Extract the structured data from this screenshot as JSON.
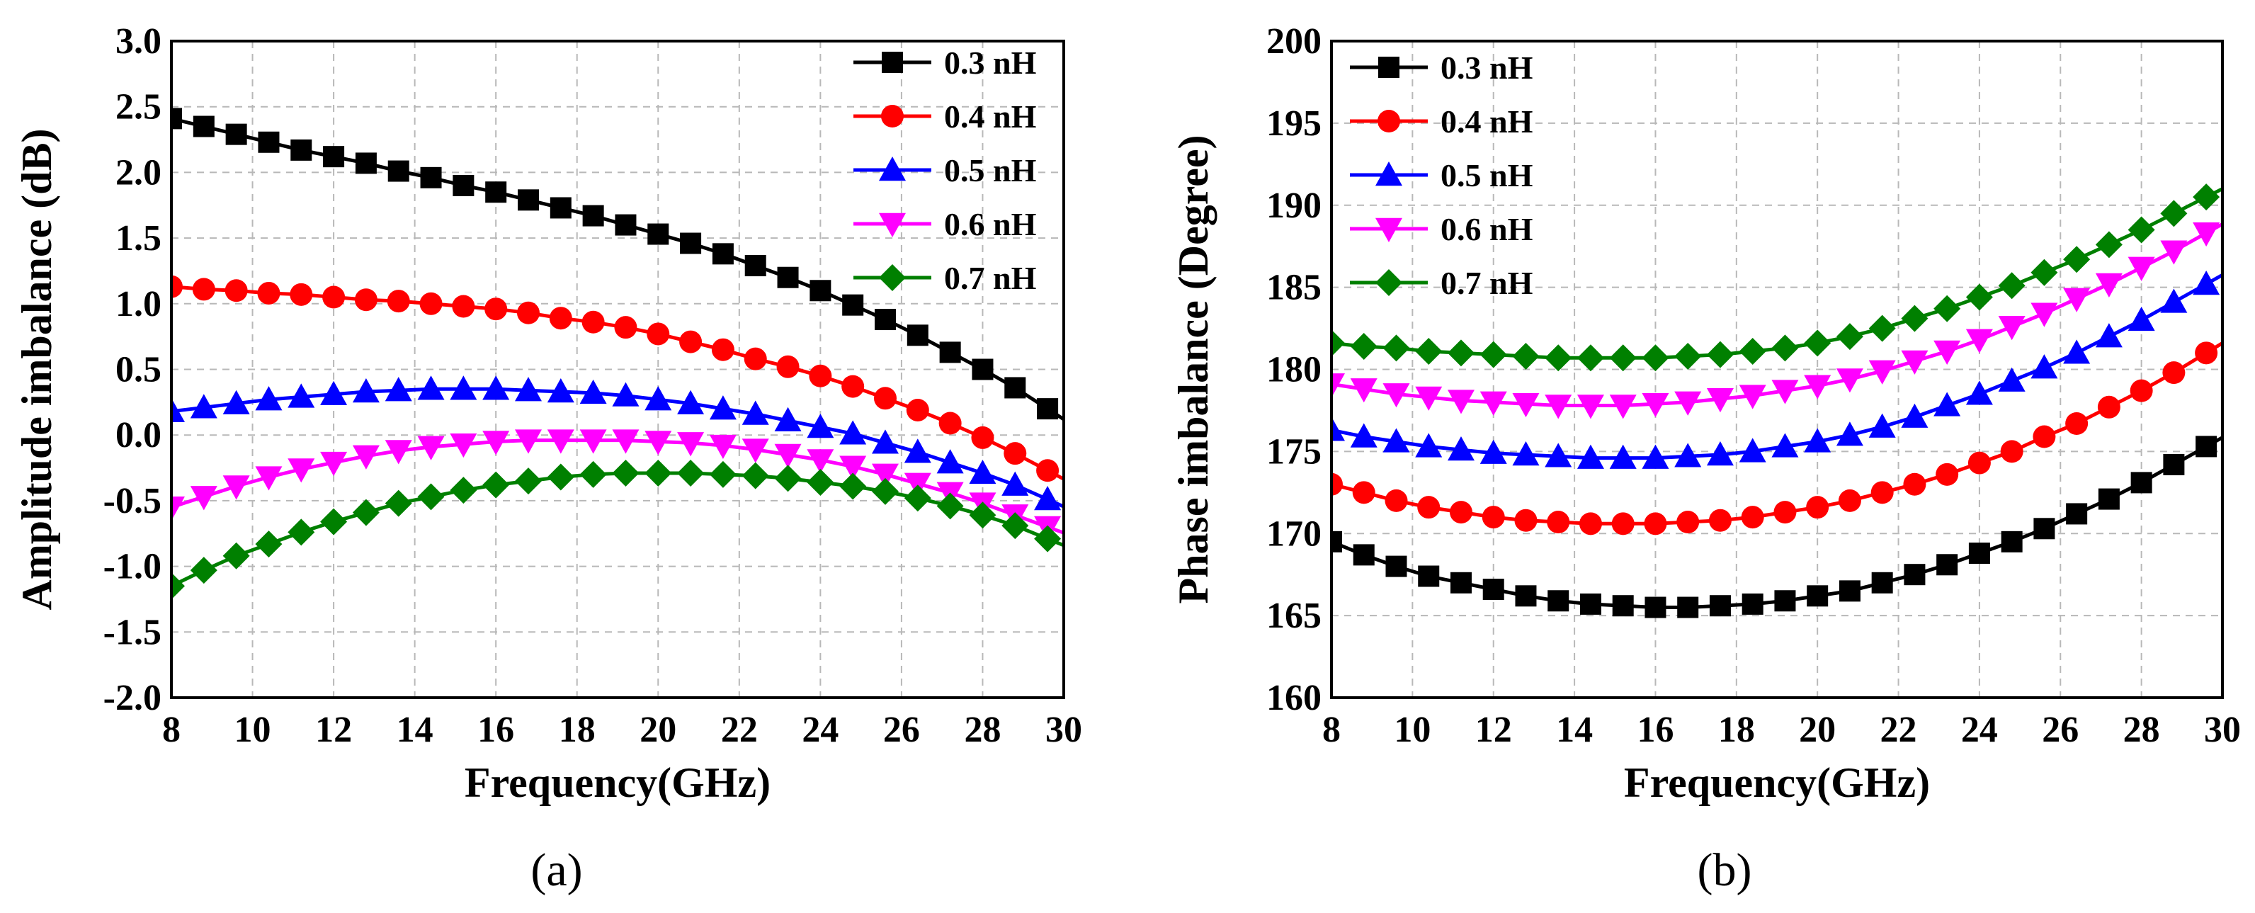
{
  "chart_data": [
    {
      "type": "line",
      "caption": "(a)",
      "xlabel": "Frequency(GHz)",
      "ylabel": "Amplitude imbalance (dB)",
      "xlim": [
        8,
        30
      ],
      "ylim": [
        -2.0,
        3.0
      ],
      "xticks": [
        "8",
        "10",
        "12",
        "14",
        "16",
        "18",
        "20",
        "22",
        "24",
        "26",
        "28",
        "30"
      ],
      "yticks": [
        "-2.0",
        "-1.5",
        "-1.0",
        "-0.5",
        "0.0",
        "0.5",
        "1.0",
        "1.5",
        "2.0",
        "2.5",
        "3.0"
      ],
      "grid": true,
      "legend_position": "top-right",
      "x": [
        8.0,
        8.8,
        9.6,
        10.4,
        11.2,
        12.0,
        12.8,
        13.6,
        14.4,
        15.2,
        16.0,
        16.8,
        17.6,
        18.4,
        19.2,
        20.0,
        20.8,
        21.6,
        22.4,
        23.2,
        24.0,
        24.8,
        25.6,
        26.4,
        27.2,
        28.0,
        28.8,
        29.6
      ],
      "series": [
        {
          "name": "0.3 nH",
          "color": "#000000",
          "marker": "square",
          "values": [
            2.41,
            2.35,
            2.29,
            2.23,
            2.17,
            2.12,
            2.07,
            2.01,
            1.96,
            1.9,
            1.85,
            1.79,
            1.73,
            1.67,
            1.6,
            1.53,
            1.46,
            1.38,
            1.29,
            1.2,
            1.1,
            0.99,
            0.88,
            0.76,
            0.63,
            0.5,
            0.36,
            0.2
          ]
        },
        {
          "name": "0.4 nH",
          "color": "#ff0000",
          "marker": "circle",
          "values": [
            1.13,
            1.11,
            1.1,
            1.08,
            1.07,
            1.05,
            1.03,
            1.02,
            1.0,
            0.98,
            0.96,
            0.93,
            0.89,
            0.86,
            0.82,
            0.77,
            0.71,
            0.65,
            0.58,
            0.52,
            0.45,
            0.37,
            0.28,
            0.19,
            0.09,
            -0.02,
            -0.14,
            -0.27
          ]
        },
        {
          "name": "0.5 nH",
          "color": "#0000ff",
          "marker": "triangle-up",
          "values": [
            0.18,
            0.21,
            0.24,
            0.27,
            0.29,
            0.31,
            0.33,
            0.34,
            0.35,
            0.35,
            0.35,
            0.34,
            0.33,
            0.32,
            0.3,
            0.27,
            0.24,
            0.2,
            0.16,
            0.11,
            0.06,
            0.01,
            -0.06,
            -0.13,
            -0.21,
            -0.29,
            -0.38,
            -0.49
          ]
        },
        {
          "name": "0.6 nH",
          "color": "#ff00ff",
          "marker": "triangle-down",
          "values": [
            -0.55,
            -0.47,
            -0.39,
            -0.32,
            -0.26,
            -0.21,
            -0.16,
            -0.12,
            -0.09,
            -0.07,
            -0.05,
            -0.04,
            -0.04,
            -0.04,
            -0.04,
            -0.05,
            -0.06,
            -0.08,
            -0.11,
            -0.15,
            -0.19,
            -0.24,
            -0.3,
            -0.37,
            -0.44,
            -0.52,
            -0.61,
            -0.7
          ]
        },
        {
          "name": "0.7 nH",
          "color": "#008000",
          "marker": "diamond",
          "values": [
            -1.15,
            -1.03,
            -0.92,
            -0.83,
            -0.74,
            -0.66,
            -0.59,
            -0.52,
            -0.47,
            -0.42,
            -0.38,
            -0.35,
            -0.32,
            -0.3,
            -0.29,
            -0.29,
            -0.29,
            -0.3,
            -0.31,
            -0.33,
            -0.36,
            -0.39,
            -0.43,
            -0.48,
            -0.54,
            -0.61,
            -0.69,
            -0.79
          ]
        }
      ]
    },
    {
      "type": "line",
      "caption": "(b)",
      "xlabel": "Frequency(GHz)",
      "ylabel": "Phase imbalance (Degree)",
      "xlim": [
        8,
        30
      ],
      "ylim": [
        160,
        200
      ],
      "xticks": [
        "8",
        "10",
        "12",
        "14",
        "16",
        "18",
        "20",
        "22",
        "24",
        "26",
        "28",
        "30"
      ],
      "yticks": [
        "160",
        "165",
        "170",
        "175",
        "180",
        "185",
        "190",
        "195",
        "200"
      ],
      "grid": true,
      "legend_position": "top-left",
      "x": [
        8.0,
        8.8,
        9.6,
        10.4,
        11.2,
        12.0,
        12.8,
        13.6,
        14.4,
        15.2,
        16.0,
        16.8,
        17.6,
        18.4,
        19.2,
        20.0,
        20.8,
        21.6,
        22.4,
        23.2,
        24.0,
        24.8,
        25.6,
        26.4,
        27.2,
        28.0,
        28.8,
        29.6
      ],
      "series": [
        {
          "name": "0.3 nH",
          "color": "#000000",
          "marker": "square",
          "values": [
            169.5,
            168.7,
            168.0,
            167.4,
            167.0,
            166.6,
            166.2,
            165.9,
            165.7,
            165.6,
            165.5,
            165.5,
            165.6,
            165.7,
            165.9,
            166.2,
            166.5,
            167.0,
            167.5,
            168.1,
            168.8,
            169.5,
            170.3,
            171.2,
            172.1,
            173.1,
            174.2,
            175.3
          ]
        },
        {
          "name": "0.4 nH",
          "color": "#ff0000",
          "marker": "circle",
          "values": [
            173.0,
            172.5,
            172.0,
            171.6,
            171.3,
            171.0,
            170.8,
            170.7,
            170.6,
            170.6,
            170.6,
            170.7,
            170.8,
            171.0,
            171.3,
            171.6,
            172.0,
            172.5,
            173.0,
            173.6,
            174.3,
            175.0,
            175.9,
            176.7,
            177.7,
            178.7,
            179.8,
            181.0
          ]
        },
        {
          "name": "0.5 nH",
          "color": "#0000ff",
          "marker": "triangle-up",
          "values": [
            176.3,
            175.9,
            175.6,
            175.3,
            175.1,
            174.9,
            174.8,
            174.7,
            174.6,
            174.6,
            174.6,
            174.7,
            174.8,
            175.0,
            175.3,
            175.6,
            176.0,
            176.5,
            177.1,
            177.8,
            178.5,
            179.3,
            180.1,
            181.0,
            182.0,
            183.0,
            184.1,
            185.2
          ]
        },
        {
          "name": "0.6 nH",
          "color": "#ff00ff",
          "marker": "triangle-down",
          "values": [
            179.1,
            178.8,
            178.5,
            178.3,
            178.1,
            178.0,
            177.9,
            177.8,
            177.8,
            177.8,
            177.9,
            178.0,
            178.2,
            178.4,
            178.7,
            179.0,
            179.4,
            179.9,
            180.5,
            181.1,
            181.8,
            182.6,
            183.4,
            184.3,
            185.2,
            186.2,
            187.2,
            188.3
          ]
        },
        {
          "name": "0.7 nH",
          "color": "#008000",
          "marker": "diamond",
          "values": [
            181.6,
            181.4,
            181.3,
            181.1,
            181.0,
            180.9,
            180.8,
            180.7,
            180.7,
            180.7,
            180.7,
            180.8,
            180.9,
            181.1,
            181.3,
            181.6,
            182.0,
            182.5,
            183.1,
            183.7,
            184.4,
            185.1,
            185.9,
            186.7,
            187.6,
            188.5,
            189.5,
            190.5
          ]
        }
      ]
    }
  ]
}
